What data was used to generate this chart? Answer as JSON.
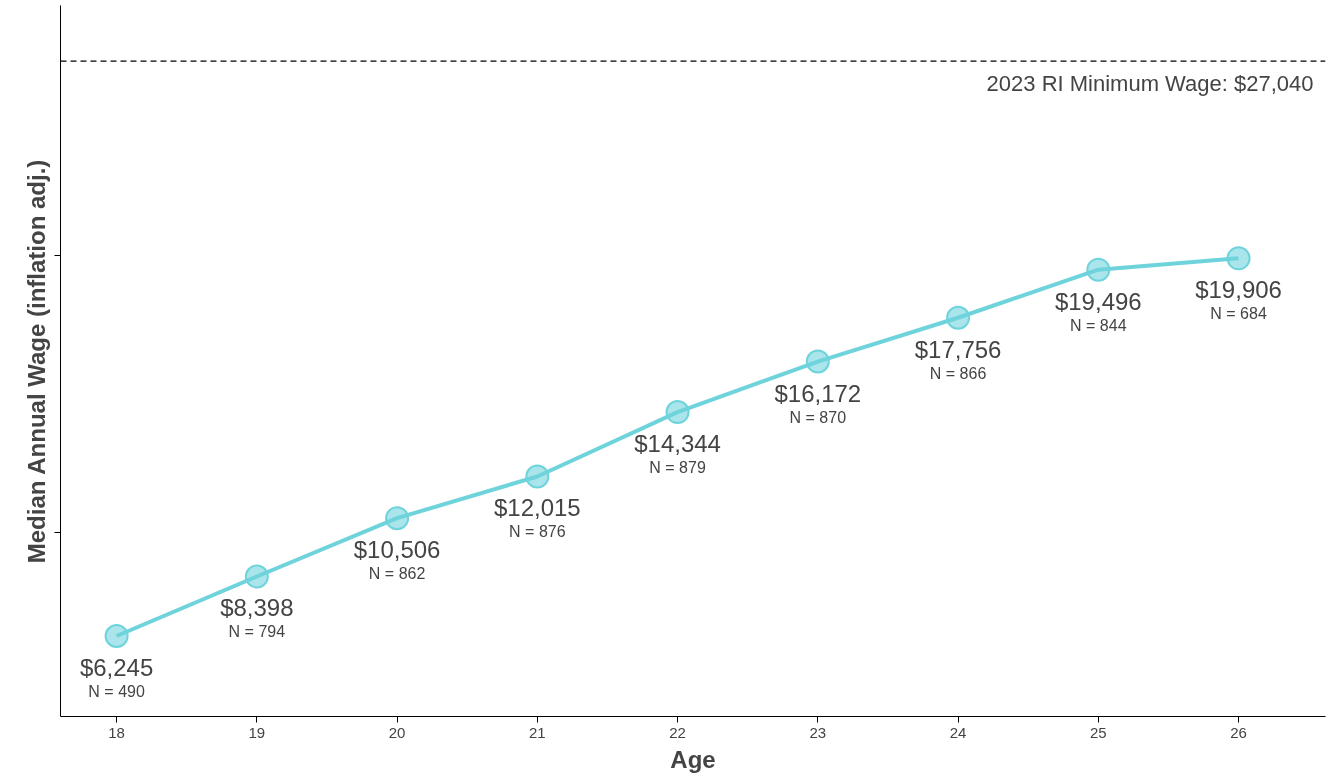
{
  "chart_data": {
    "type": "line",
    "xlabel": "Age",
    "ylabel": "Median Annual Wage (inflation adj.)",
    "x": [
      18,
      19,
      20,
      21,
      22,
      23,
      24,
      25,
      26
    ],
    "series": [
      {
        "color": "#6fd3dc",
        "values": [
          6245,
          8398,
          10506,
          12015,
          14344,
          16172,
          17756,
          19496,
          19906
        ],
        "value_labels": [
          "$6,245",
          "$8,398",
          "$10,506",
          "$12,015",
          "$14,344",
          "$16,172",
          "$17,756",
          "$19,496",
          "$19,906"
        ]
      }
    ],
    "annotations": [
      {
        "text": "N = 490",
        "x": 18,
        "y": 6245
      },
      {
        "text": "N = 794",
        "x": 19,
        "y": 8398
      },
      {
        "text": "N = 862",
        "x": 20,
        "y": 10506
      },
      {
        "text": "N = 876",
        "x": 21,
        "y": 12015
      },
      {
        "text": "N = 879",
        "x": 22,
        "y": 14344
      },
      {
        "text": "N = 870",
        "x": 23,
        "y": 16172
      },
      {
        "text": "N = 866",
        "x": 24,
        "y": 17756
      },
      {
        "text": "N = 844",
        "x": 25,
        "y": 19496
      },
      {
        "text": "N = 684",
        "x": 26,
        "y": 19906
      }
    ],
    "ref_lines": [
      {
        "axis": "y",
        "value": 27040,
        "label": "2023 RI Minimum Wage: $27,040",
        "line_style": "dashed",
        "color": "#000000"
      }
    ],
    "xlim": [
      17.6,
      26.62
    ],
    "xticks": [
      18,
      19,
      20,
      21,
      22,
      23,
      24,
      25,
      26
    ],
    "ylim": [
      3333,
      29050
    ],
    "yticks": [
      {
        "value": 10000,
        "label": null
      },
      {
        "value": 20000,
        "label": null
      }
    ],
    "tick_labels": "x",
    "marker": "circle",
    "line_style": "solid",
    "grid": false
  }
}
